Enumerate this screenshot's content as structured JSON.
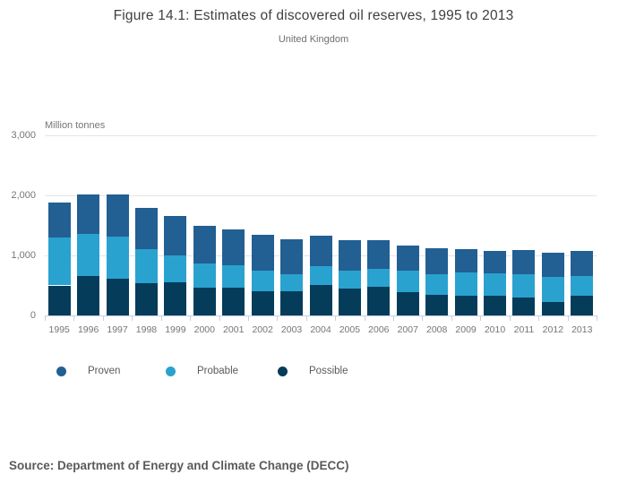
{
  "chart_data": {
    "type": "bar",
    "stacked": true,
    "title": "Figure 14.1: Estimates of discovered oil reserves, 1995 to 2013",
    "subtitle": "United Kingdom",
    "unit_label": "Million tonnes",
    "categories": [
      "1995",
      "1996",
      "1997",
      "1998",
      "1999",
      "2000",
      "2001",
      "2002",
      "2003",
      "2004",
      "2005",
      "2006",
      "2007",
      "2008",
      "2009",
      "2010",
      "2011",
      "2012",
      "2013"
    ],
    "series": [
      {
        "name": "Possible",
        "color": "#053c5a",
        "values": [
          500,
          660,
          610,
          530,
          550,
          470,
          460,
          410,
          400,
          510,
          450,
          480,
          390,
          340,
          330,
          330,
          300,
          230,
          330
        ]
      },
      {
        "name": "Probable",
        "color": "#2aa2cf",
        "values": [
          800,
          700,
          710,
          570,
          450,
          390,
          380,
          340,
          290,
          310,
          300,
          290,
          350,
          340,
          380,
          370,
          390,
          410,
          330
        ]
      },
      {
        "name": "Proven",
        "color": "#225f92",
        "values": [
          580,
          660,
          690,
          690,
          660,
          630,
          590,
          600,
          580,
          510,
          510,
          490,
          430,
          440,
          390,
          380,
          400,
          400,
          410
        ]
      }
    ],
    "stack_order": "bottom-to-top",
    "ylim": [
      0,
      3000
    ],
    "y_ticks": {
      "values": [
        0,
        1000,
        2000,
        3000
      ],
      "labels": [
        "0",
        "1,000",
        "2,000",
        "3,000"
      ]
    },
    "grid": true,
    "legend_position": "bottom",
    "legend": [
      {
        "label": "Proven",
        "color": "#225f92"
      },
      {
        "label": "Probable",
        "color": "#2aa2cf"
      },
      {
        "label": "Possible",
        "color": "#053c5a"
      }
    ],
    "colors": {
      "gridline": "#e4e4e4",
      "axis_line": "#c5cfe6",
      "axis_text": "#757575",
      "title_text": "#3f3f3f",
      "subtitle_text": "#6e6e6e",
      "legend_text": "#5a5a5a",
      "source_text": "#5a5a5a"
    }
  },
  "source": {
    "text": "Source: Department of Energy and Climate Change (DECC)"
  }
}
